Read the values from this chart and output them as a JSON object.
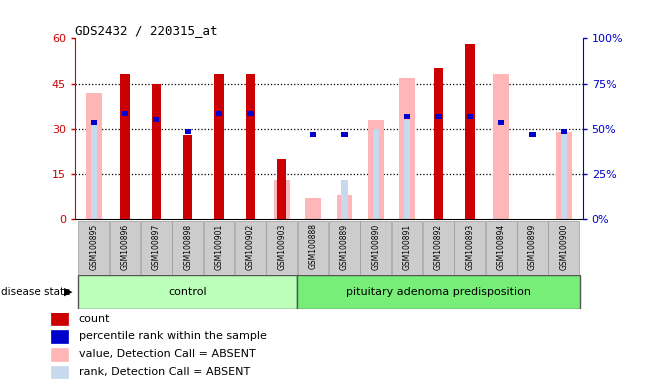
{
  "title": "GDS2432 / 220315_at",
  "samples": [
    "GSM100895",
    "GSM100896",
    "GSM100897",
    "GSM100898",
    "GSM100901",
    "GSM100902",
    "GSM100903",
    "GSM100888",
    "GSM100889",
    "GSM100890",
    "GSM100891",
    "GSM100892",
    "GSM100893",
    "GSM100894",
    "GSM100899",
    "GSM100900"
  ],
  "count": [
    0,
    48,
    45,
    28,
    48,
    48,
    20,
    0,
    0,
    0,
    0,
    50,
    58,
    0,
    0,
    0
  ],
  "percentile_rank": [
    32,
    35,
    33,
    29,
    35,
    35,
    0,
    28,
    28,
    0,
    34,
    34,
    34,
    32,
    28,
    29
  ],
  "percentile_rank_show": [
    true,
    true,
    true,
    true,
    true,
    true,
    false,
    true,
    true,
    false,
    true,
    true,
    true,
    true,
    true,
    true
  ],
  "value_absent": [
    42,
    0,
    0,
    0,
    0,
    0,
    13,
    7,
    8,
    33,
    47,
    0,
    0,
    48,
    0,
    29
  ],
  "rank_absent": [
    32,
    0,
    0,
    0,
    0,
    0,
    16,
    0,
    13,
    30,
    33,
    0,
    0,
    0,
    0,
    29
  ],
  "rank_absent_show": [
    true,
    false,
    false,
    false,
    false,
    false,
    true,
    false,
    true,
    true,
    true,
    false,
    false,
    false,
    false,
    true
  ],
  "n_control": 7,
  "n_total": 16,
  "ylim_left": [
    0,
    60
  ],
  "yticks_left": [
    0,
    15,
    30,
    45,
    60
  ],
  "ytick_labels_left": [
    "0",
    "15",
    "30",
    "45",
    "60"
  ],
  "ytick_labels_right": [
    "0%",
    "25%",
    "50%",
    "75%",
    "100%"
  ],
  "color_count": "#cc0000",
  "color_percentile": "#0000cc",
  "color_value_absent": "#ffb6b6",
  "color_rank_absent": "#c8d8ee",
  "color_label_bg": "#cccccc",
  "color_control_bg": "#bbffbb",
  "color_pituitary_bg": "#77ee77",
  "legend_items": [
    "count",
    "percentile rank within the sample",
    "value, Detection Call = ABSENT",
    "rank, Detection Call = ABSENT"
  ],
  "legend_colors": [
    "#cc0000",
    "#0000cc",
    "#ffb6b6",
    "#c8d8ee"
  ]
}
